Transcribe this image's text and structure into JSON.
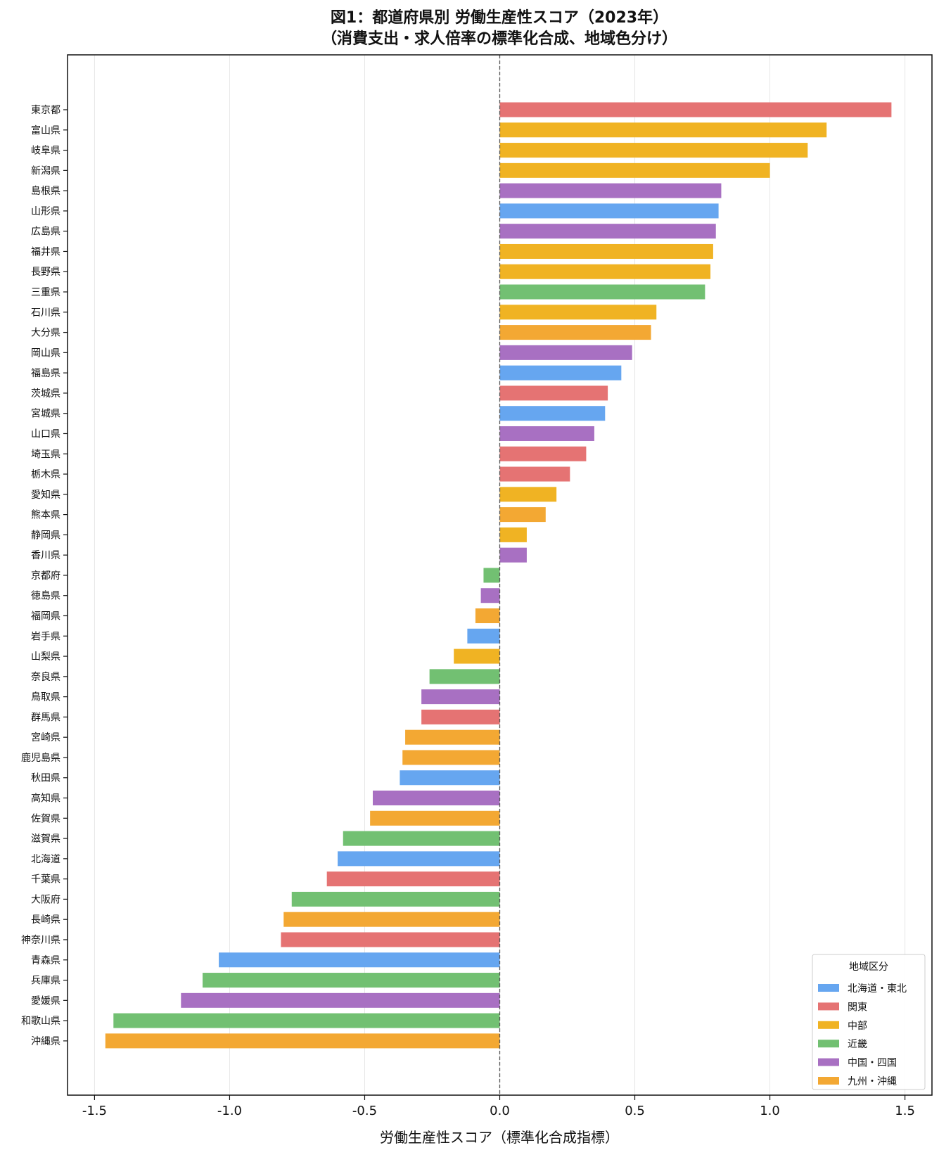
{
  "chart_data": {
    "type": "bar",
    "orientation": "horizontal",
    "title": "図1：都道府県別 労働生産性スコア（2023年）",
    "subtitle": "（消費支出・求人倍率の標準化合成、地域色分け）",
    "xlabel": "労働生産性スコア（標準化合成指標）",
    "ylabel": "",
    "xlim": [
      -1.6,
      1.6
    ],
    "xticks": [
      -1.5,
      -1.0,
      -0.5,
      0.0,
      0.5,
      1.0,
      1.5
    ],
    "xtick_labels": [
      "-1.5",
      "-1.0",
      "-0.5",
      "0.0",
      "0.5",
      "1.0",
      "1.5"
    ],
    "grid": "vertical",
    "reference_line": 0.0,
    "legend": {
      "title": "地域区分",
      "position": "lower-right",
      "entries": [
        {
          "key": "hokkaido_tohoku",
          "label": "北海道・東北",
          "color": "#66a6f0"
        },
        {
          "key": "kanto",
          "label": "関東",
          "color": "#e57373"
        },
        {
          "key": "chubu",
          "label": "中部",
          "color": "#f0b323"
        },
        {
          "key": "kinki",
          "label": "近畿",
          "color": "#72c072"
        },
        {
          "key": "chugoku_shikoku",
          "label": "中国・四国",
          "color": "#a870c2"
        },
        {
          "key": "kyushu_okinawa",
          "label": "九州・沖縄",
          "color": "#f3a833"
        }
      ]
    },
    "bars": [
      {
        "label": "東京都",
        "value": 1.45,
        "region": "kanto"
      },
      {
        "label": "富山県",
        "value": 1.21,
        "region": "chubu"
      },
      {
        "label": "岐阜県",
        "value": 1.14,
        "region": "chubu"
      },
      {
        "label": "新潟県",
        "value": 1.0,
        "region": "chubu"
      },
      {
        "label": "島根県",
        "value": 0.82,
        "region": "chugoku_shikoku"
      },
      {
        "label": "山形県",
        "value": 0.81,
        "region": "hokkaido_tohoku"
      },
      {
        "label": "広島県",
        "value": 0.8,
        "region": "chugoku_shikoku"
      },
      {
        "label": "福井県",
        "value": 0.79,
        "region": "chubu"
      },
      {
        "label": "長野県",
        "value": 0.78,
        "region": "chubu"
      },
      {
        "label": "三重県",
        "value": 0.76,
        "region": "kinki"
      },
      {
        "label": "石川県",
        "value": 0.58,
        "region": "chubu"
      },
      {
        "label": "大分県",
        "value": 0.56,
        "region": "kyushu_okinawa"
      },
      {
        "label": "岡山県",
        "value": 0.49,
        "region": "chugoku_shikoku"
      },
      {
        "label": "福島県",
        "value": 0.45,
        "region": "hokkaido_tohoku"
      },
      {
        "label": "茨城県",
        "value": 0.4,
        "region": "kanto"
      },
      {
        "label": "宮城県",
        "value": 0.39,
        "region": "hokkaido_tohoku"
      },
      {
        "label": "山口県",
        "value": 0.35,
        "region": "chugoku_shikoku"
      },
      {
        "label": "埼玉県",
        "value": 0.32,
        "region": "kanto"
      },
      {
        "label": "栃木県",
        "value": 0.26,
        "region": "kanto"
      },
      {
        "label": "愛知県",
        "value": 0.21,
        "region": "chubu"
      },
      {
        "label": "熊本県",
        "value": 0.17,
        "region": "kyushu_okinawa"
      },
      {
        "label": "静岡県",
        "value": 0.1,
        "region": "chubu"
      },
      {
        "label": "香川県",
        "value": 0.1,
        "region": "chugoku_shikoku"
      },
      {
        "label": "京都府",
        "value": -0.06,
        "region": "kinki"
      },
      {
        "label": "徳島県",
        "value": -0.07,
        "region": "chugoku_shikoku"
      },
      {
        "label": "福岡県",
        "value": -0.09,
        "region": "kyushu_okinawa"
      },
      {
        "label": "岩手県",
        "value": -0.12,
        "region": "hokkaido_tohoku"
      },
      {
        "label": "山梨県",
        "value": -0.17,
        "region": "chubu"
      },
      {
        "label": "奈良県",
        "value": -0.26,
        "region": "kinki"
      },
      {
        "label": "鳥取県",
        "value": -0.29,
        "region": "chugoku_shikoku"
      },
      {
        "label": "群馬県",
        "value": -0.29,
        "region": "kanto"
      },
      {
        "label": "宮崎県",
        "value": -0.35,
        "region": "kyushu_okinawa"
      },
      {
        "label": "鹿児島県",
        "value": -0.36,
        "region": "kyushu_okinawa"
      },
      {
        "label": "秋田県",
        "value": -0.37,
        "region": "hokkaido_tohoku"
      },
      {
        "label": "高知県",
        "value": -0.47,
        "region": "chugoku_shikoku"
      },
      {
        "label": "佐賀県",
        "value": -0.48,
        "region": "kyushu_okinawa"
      },
      {
        "label": "滋賀県",
        "value": -0.58,
        "region": "kinki"
      },
      {
        "label": "北海道",
        "value": -0.6,
        "region": "hokkaido_tohoku"
      },
      {
        "label": "千葉県",
        "value": -0.64,
        "region": "kanto"
      },
      {
        "label": "大阪府",
        "value": -0.77,
        "region": "kinki"
      },
      {
        "label": "長崎県",
        "value": -0.8,
        "region": "kyushu_okinawa"
      },
      {
        "label": "神奈川県",
        "value": -0.81,
        "region": "kanto"
      },
      {
        "label": "青森県",
        "value": -1.04,
        "region": "hokkaido_tohoku"
      },
      {
        "label": "兵庫県",
        "value": -1.1,
        "region": "kinki"
      },
      {
        "label": "愛媛県",
        "value": -1.18,
        "region": "chugoku_shikoku"
      },
      {
        "label": "和歌山県",
        "value": -1.43,
        "region": "kinki"
      },
      {
        "label": "沖縄県",
        "value": -1.46,
        "region": "kyushu_okinawa"
      }
    ]
  }
}
